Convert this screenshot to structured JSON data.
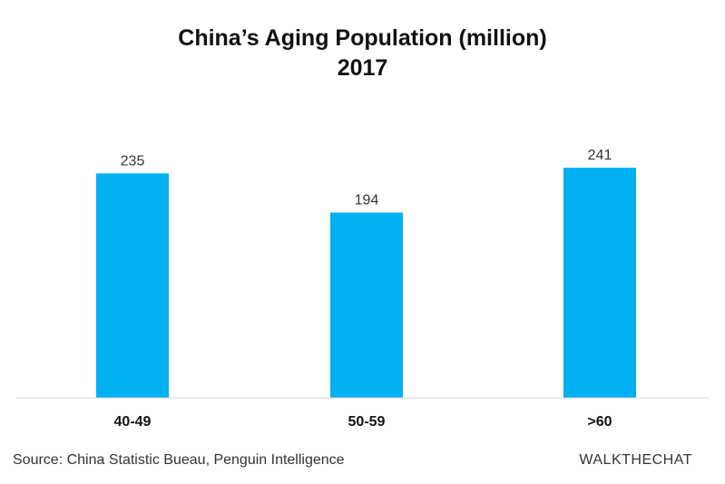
{
  "chart_data": {
    "type": "bar",
    "title": "China’s Aging Population (million)",
    "subtitle": "2017",
    "categories": [
      "40-49",
      "50-59",
      ">60"
    ],
    "values": [
      235,
      194,
      241
    ],
    "xlabel": "",
    "ylabel": "",
    "ylim": [
      0,
      250
    ],
    "grid": false,
    "legend": "none",
    "bar_color": "#00b0f0",
    "axis_color": "#d9d9d9"
  },
  "footer": {
    "source": "Source: China Statistic Bueau, Penguin Intelligence",
    "brand": "WALKTHECHAT"
  }
}
